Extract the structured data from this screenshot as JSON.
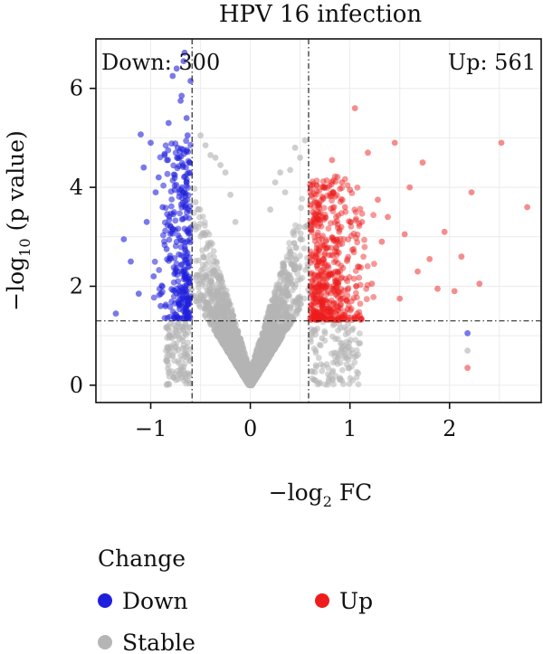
{
  "chart_data": {
    "type": "scatter",
    "title": "HPV 16 infection",
    "xlabel": "−log",
    "xlabel_sub": "2",
    "xlabel_tail": " FC",
    "ylabel": "−log",
    "ylabel_sub": "10",
    "ylabel_tail": " (p value)",
    "xlim": [
      -1.55,
      2.92
    ],
    "ylim": [
      -0.35,
      7.0
    ],
    "x_ticks": [
      -1,
      0,
      1,
      2
    ],
    "x_tick_labels": [
      "−1",
      "0",
      "1",
      "2"
    ],
    "y_ticks": [
      0,
      2,
      4,
      6
    ],
    "y_tick_labels": [
      "0",
      "2",
      "4",
      "6"
    ],
    "grid": true,
    "thresholds": {
      "fc": [
        -0.585,
        0.585
      ],
      "p": 1.3
    },
    "annotations": {
      "down": "Down: 300",
      "up": "Up: 561"
    },
    "legend": {
      "title": "Change",
      "position": "bottom-left",
      "items": [
        {
          "label": "Down",
          "color": "#1f1fdd"
        },
        {
          "label": "Up",
          "color": "#ee1c1c"
        },
        {
          "label": "Stable",
          "color": "#b5b5b5"
        }
      ]
    },
    "series": [
      {
        "name": "Down",
        "color": "#1f1fdd",
        "points": [
          [
            -1.35,
            1.45
          ],
          [
            -1.27,
            2.95
          ],
          [
            -1.2,
            2.5
          ],
          [
            -1.12,
            1.85
          ],
          [
            -1.1,
            5.07
          ],
          [
            -1.07,
            4.4
          ],
          [
            -1.04,
            3.3
          ],
          [
            -1.0,
            4.9
          ],
          [
            -0.97,
            2.2
          ],
          [
            -0.95,
            3.9
          ],
          [
            -0.92,
            4.2
          ],
          [
            -0.9,
            1.6
          ],
          [
            -0.88,
            3.6
          ],
          [
            -0.86,
            4.65
          ],
          [
            -0.84,
            2.75
          ],
          [
            -0.82,
            5.3
          ],
          [
            -0.8,
            3.2
          ],
          [
            -0.78,
            6.25
          ],
          [
            -0.76,
            3.95
          ],
          [
            -0.74,
            6.4
          ],
          [
            -0.73,
            4.8
          ],
          [
            -0.7,
            5.75
          ],
          [
            -0.69,
            5.85
          ],
          [
            -0.67,
            6.55
          ],
          [
            -0.66,
            6.72
          ],
          [
            -0.64,
            5.4
          ],
          [
            -0.63,
            5.05
          ],
          [
            -0.62,
            1.35
          ],
          [
            -0.61,
            4.5
          ],
          [
            -0.6,
            6.15
          ],
          [
            2.18,
            1.05
          ]
        ]
      },
      {
        "name": "Up",
        "color": "#ee1c1c",
        "points": [
          [
            0.6,
            4.05
          ],
          [
            0.63,
            1.4
          ],
          [
            0.66,
            3.85
          ],
          [
            0.7,
            2.25
          ],
          [
            0.74,
            3.35
          ],
          [
            0.78,
            1.55
          ],
          [
            0.82,
            4.55
          ],
          [
            0.85,
            2.7
          ],
          [
            0.88,
            1.9
          ],
          [
            0.92,
            4.1
          ],
          [
            0.95,
            3.6
          ],
          [
            1.0,
            3.95
          ],
          [
            1.05,
            5.6
          ],
          [
            1.08,
            2.4
          ],
          [
            1.12,
            3.3
          ],
          [
            1.18,
            4.7
          ],
          [
            1.22,
            2.05
          ],
          [
            1.28,
            3.75
          ],
          [
            1.32,
            2.9
          ],
          [
            1.38,
            3.4
          ],
          [
            1.45,
            4.9
          ],
          [
            1.5,
            1.75
          ],
          [
            1.55,
            3.05
          ],
          [
            1.6,
            4.0
          ],
          [
            1.68,
            2.3
          ],
          [
            1.73,
            4.5
          ],
          [
            1.8,
            2.55
          ],
          [
            1.88,
            1.95
          ],
          [
            1.95,
            3.1
          ],
          [
            2.05,
            1.9
          ],
          [
            2.12,
            2.6
          ],
          [
            2.22,
            3.9
          ],
          [
            2.3,
            2.05
          ],
          [
            2.52,
            4.9
          ],
          [
            2.78,
            3.6
          ],
          [
            2.18,
            0.35
          ]
        ]
      },
      {
        "name": "Stable",
        "color": "#b5b5b5",
        "points": [
          [
            -0.5,
            5.05
          ],
          [
            -0.45,
            4.85
          ],
          [
            -0.4,
            4.65
          ],
          [
            -0.35,
            4.6
          ],
          [
            -0.3,
            4.45
          ],
          [
            -0.25,
            4.3
          ],
          [
            -0.2,
            3.85
          ],
          [
            -0.15,
            3.3
          ],
          [
            0.2,
            3.55
          ],
          [
            0.25,
            4.1
          ],
          [
            0.3,
            4.3
          ],
          [
            0.35,
            3.9
          ],
          [
            0.4,
            4.35
          ],
          [
            0.45,
            4.8
          ],
          [
            0.5,
            4.6
          ],
          [
            0.55,
            4.95
          ],
          [
            -0.55,
            3.7
          ],
          [
            0.55,
            3.2
          ],
          [
            0.72,
            0.95
          ],
          [
            0.95,
            0.6
          ],
          [
            1.1,
            0.85
          ],
          [
            -0.63,
            0.55
          ],
          [
            -0.68,
            0.9
          ],
          [
            2.18,
            0.7
          ]
        ]
      }
    ]
  }
}
